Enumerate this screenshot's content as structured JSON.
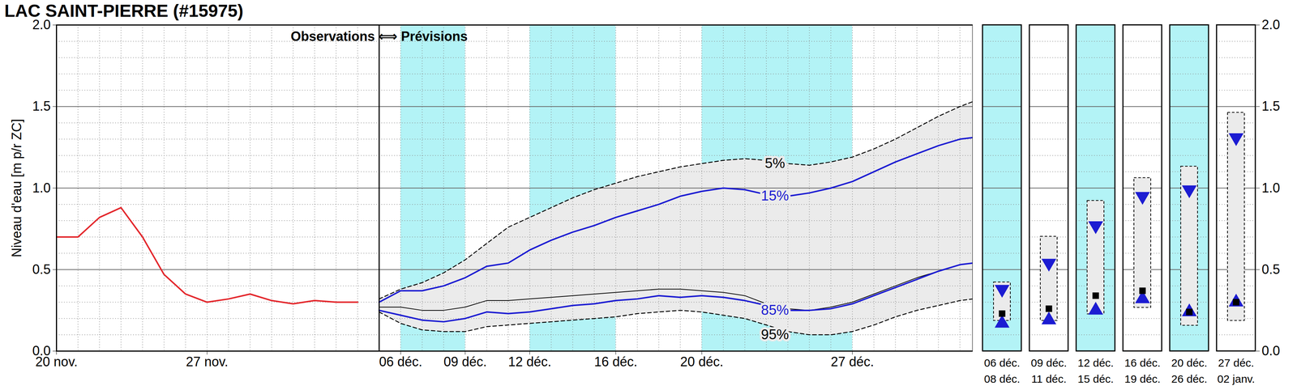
{
  "chart_data": [
    {
      "type": "line",
      "title": "LAC SAINT-PIERRE (#15975)",
      "y_label": "Niveau d'eau [m p/r ZC]",
      "header_text": "Observations ⟺ Prévisions",
      "forecast_start": 15,
      "x": [
        0,
        1,
        2,
        3,
        4,
        5,
        6,
        7,
        8,
        9,
        10,
        11,
        12,
        13,
        14,
        15,
        16,
        17,
        18,
        19,
        20,
        21,
        22,
        23,
        24,
        25,
        26,
        27,
        28,
        29,
        30,
        31,
        32,
        33,
        34,
        35,
        36,
        37,
        38,
        39,
        40,
        41,
        42,
        42.6
      ],
      "xlim": [
        0,
        42.6
      ],
      "xticks": [
        {
          "value": 0,
          "label": "20 nov."
        },
        {
          "value": 7,
          "label": "27 nov."
        },
        {
          "value": 16,
          "label": "06 déc."
        },
        {
          "value": 19,
          "label": "09 déc."
        },
        {
          "value": 22,
          "label": "12 déc."
        },
        {
          "value": 26,
          "label": "16 déc."
        },
        {
          "value": 30,
          "label": "20 déc."
        },
        {
          "value": 37,
          "label": "27 déc."
        }
      ],
      "minor_xticks": [
        1,
        2,
        3,
        4,
        5,
        6,
        7,
        8,
        9,
        10,
        11,
        12,
        13,
        14,
        15,
        16,
        17,
        18,
        19,
        20,
        21,
        22,
        23,
        24,
        25,
        26,
        27,
        28,
        29,
        30,
        31,
        32,
        33,
        34,
        35,
        36,
        37,
        38,
        39,
        40,
        41,
        42
      ],
      "ylim": [
        0,
        2
      ],
      "yticks": [
        {
          "value": 0,
          "label": "0.0"
        },
        {
          "value": 0.5,
          "label": "0.5"
        },
        {
          "value": 1,
          "label": "1.0"
        },
        {
          "value": 1.5,
          "label": "1.5"
        },
        {
          "value": 2,
          "label": "2.0"
        }
      ],
      "minor_yticks": [
        0.1,
        0.2,
        0.3,
        0.4,
        0.6,
        0.7,
        0.8,
        0.9,
        1.1,
        1.2,
        1.3,
        1.4,
        1.6,
        1.7,
        1.8,
        1.9
      ],
      "grid": true,
      "bands": [
        {
          "x1": 16,
          "x2": 19
        },
        {
          "x1": 22,
          "x2": 26
        },
        {
          "x1": 30,
          "x2": 37
        }
      ],
      "band_color": "#b3f3f6",
      "fill_between": {
        "lower": "95%",
        "upper": "5%",
        "color": "#ebebeb"
      },
      "series": [
        {
          "color": "#e3262b",
          "line_style": "solid",
          "values": [
            0.7,
            0.7,
            0.82,
            0.88,
            0.7,
            0.47,
            0.35,
            0.3,
            0.32,
            0.35,
            0.31,
            0.29,
            0.31,
            0.3,
            0.3,
            null,
            null,
            null,
            null,
            null,
            null,
            null,
            null,
            null,
            null,
            null,
            null,
            null,
            null,
            null,
            null,
            null,
            null,
            null,
            null,
            null,
            null,
            null,
            null,
            null,
            null,
            null,
            null,
            null
          ]
        },
        {
          "name": "5%",
          "color": "#000000",
          "line_style": "dashed",
          "label_x": 33.4,
          "label_y": 1.15,
          "values": [
            null,
            null,
            null,
            null,
            null,
            null,
            null,
            null,
            null,
            null,
            null,
            null,
            null,
            null,
            null,
            0.32,
            0.38,
            0.42,
            0.48,
            0.56,
            0.66,
            0.76,
            0.82,
            0.88,
            0.94,
            0.99,
            1.03,
            1.07,
            1.1,
            1.13,
            1.15,
            1.17,
            1.18,
            1.17,
            1.15,
            1.14,
            1.16,
            1.19,
            1.24,
            1.3,
            1.37,
            1.44,
            1.5,
            1.53
          ]
        },
        {
          "name": "15%",
          "color": "#1c1cd2",
          "line_style": "solid",
          "label_x": 33.4,
          "label_y": 0.95,
          "values": [
            null,
            null,
            null,
            null,
            null,
            null,
            null,
            null,
            null,
            null,
            null,
            null,
            null,
            null,
            null,
            0.3,
            0.37,
            0.37,
            0.4,
            0.45,
            0.52,
            0.54,
            0.62,
            0.68,
            0.73,
            0.77,
            0.82,
            0.86,
            0.9,
            0.95,
            0.98,
            1.0,
            0.99,
            0.96,
            0.95,
            0.97,
            1.0,
            1.04,
            1.1,
            1.16,
            1.21,
            1.26,
            1.3,
            1.31
          ]
        },
        {
          "color": "#000000",
          "line_style": "solid",
          "values": [
            null,
            null,
            null,
            null,
            null,
            null,
            null,
            null,
            null,
            null,
            null,
            null,
            null,
            null,
            null,
            0.27,
            0.27,
            0.25,
            0.25,
            0.27,
            0.31,
            0.31,
            0.32,
            0.33,
            0.34,
            0.35,
            0.36,
            0.37,
            0.38,
            0.38,
            0.37,
            0.36,
            0.34,
            0.29,
            0.26,
            0.25,
            0.27,
            0.3,
            0.35,
            0.4,
            0.45,
            0.49,
            0.53,
            0.54
          ]
        },
        {
          "name": "85%",
          "color": "#1c1cd2",
          "line_style": "solid",
          "label_x": 33.4,
          "label_y": 0.25,
          "values": [
            null,
            null,
            null,
            null,
            null,
            null,
            null,
            null,
            null,
            null,
            null,
            null,
            null,
            null,
            null,
            0.25,
            0.22,
            0.19,
            0.18,
            0.2,
            0.24,
            0.23,
            0.24,
            0.26,
            0.28,
            0.29,
            0.31,
            0.32,
            0.34,
            0.33,
            0.34,
            0.33,
            0.31,
            0.28,
            0.25,
            0.25,
            0.26,
            0.29,
            0.34,
            0.39,
            0.44,
            0.49,
            0.53,
            0.54
          ]
        },
        {
          "name": "95%",
          "color": "#000000",
          "line_style": "dashed",
          "label_x": 33.4,
          "label_y": 0.1,
          "values": [
            null,
            null,
            null,
            null,
            null,
            null,
            null,
            null,
            null,
            null,
            null,
            null,
            null,
            null,
            null,
            0.24,
            0.17,
            0.13,
            0.12,
            0.12,
            0.15,
            0.16,
            0.17,
            0.18,
            0.19,
            0.2,
            0.21,
            0.23,
            0.24,
            0.25,
            0.24,
            0.22,
            0.2,
            0.16,
            0.12,
            0.1,
            0.1,
            0.12,
            0.16,
            0.21,
            0.25,
            0.28,
            0.31,
            0.32
          ]
        }
      ]
    },
    {
      "type": "range",
      "categories": [
        [
          "06 déc.",
          "08 déc."
        ],
        [
          "09 déc.",
          "11 déc."
        ],
        [
          "12 déc.",
          "15 déc."
        ],
        [
          "16 déc.",
          "19 déc."
        ],
        [
          "20 déc.",
          "26 déc."
        ],
        [
          "27 déc.",
          "02 janv."
        ]
      ],
      "shaded": [
        true,
        false,
        true,
        false,
        true,
        false
      ],
      "shade_color": "#b3f3f6",
      "range_color": "#ebebeb",
      "ylim": [
        0,
        2
      ],
      "yticks": [
        {
          "value": 0,
          "label": "0.0"
        },
        {
          "value": 0.5,
          "label": "0.5"
        },
        {
          "value": 1,
          "label": "1.0"
        },
        {
          "value": 1.5,
          "label": "1.5"
        },
        {
          "value": 2,
          "label": "2.0"
        }
      ],
      "minor_yticks": [
        0.1,
        0.2,
        0.3,
        0.4,
        0.6,
        0.7,
        0.8,
        0.9,
        1.1,
        1.2,
        1.3,
        1.4,
        1.6,
        1.7,
        1.8,
        1.9
      ],
      "low": [
        0.12,
        0.12,
        0.16,
        0.2,
        0.09,
        0.12
      ],
      "high": [
        0.49,
        0.77,
        0.99,
        1.13,
        1.2,
        1.53
      ],
      "q15": [
        0.38,
        0.54,
        0.77,
        0.95,
        0.99,
        1.31
      ],
      "median": [
        0.23,
        0.26,
        0.34,
        0.37,
        0.24,
        0.3
      ],
      "q85": [
        0.17,
        0.19,
        0.25,
        0.32,
        0.24,
        0.3
      ],
      "quantile_color": "#1c1cd2",
      "median_color": "#000000"
    }
  ]
}
